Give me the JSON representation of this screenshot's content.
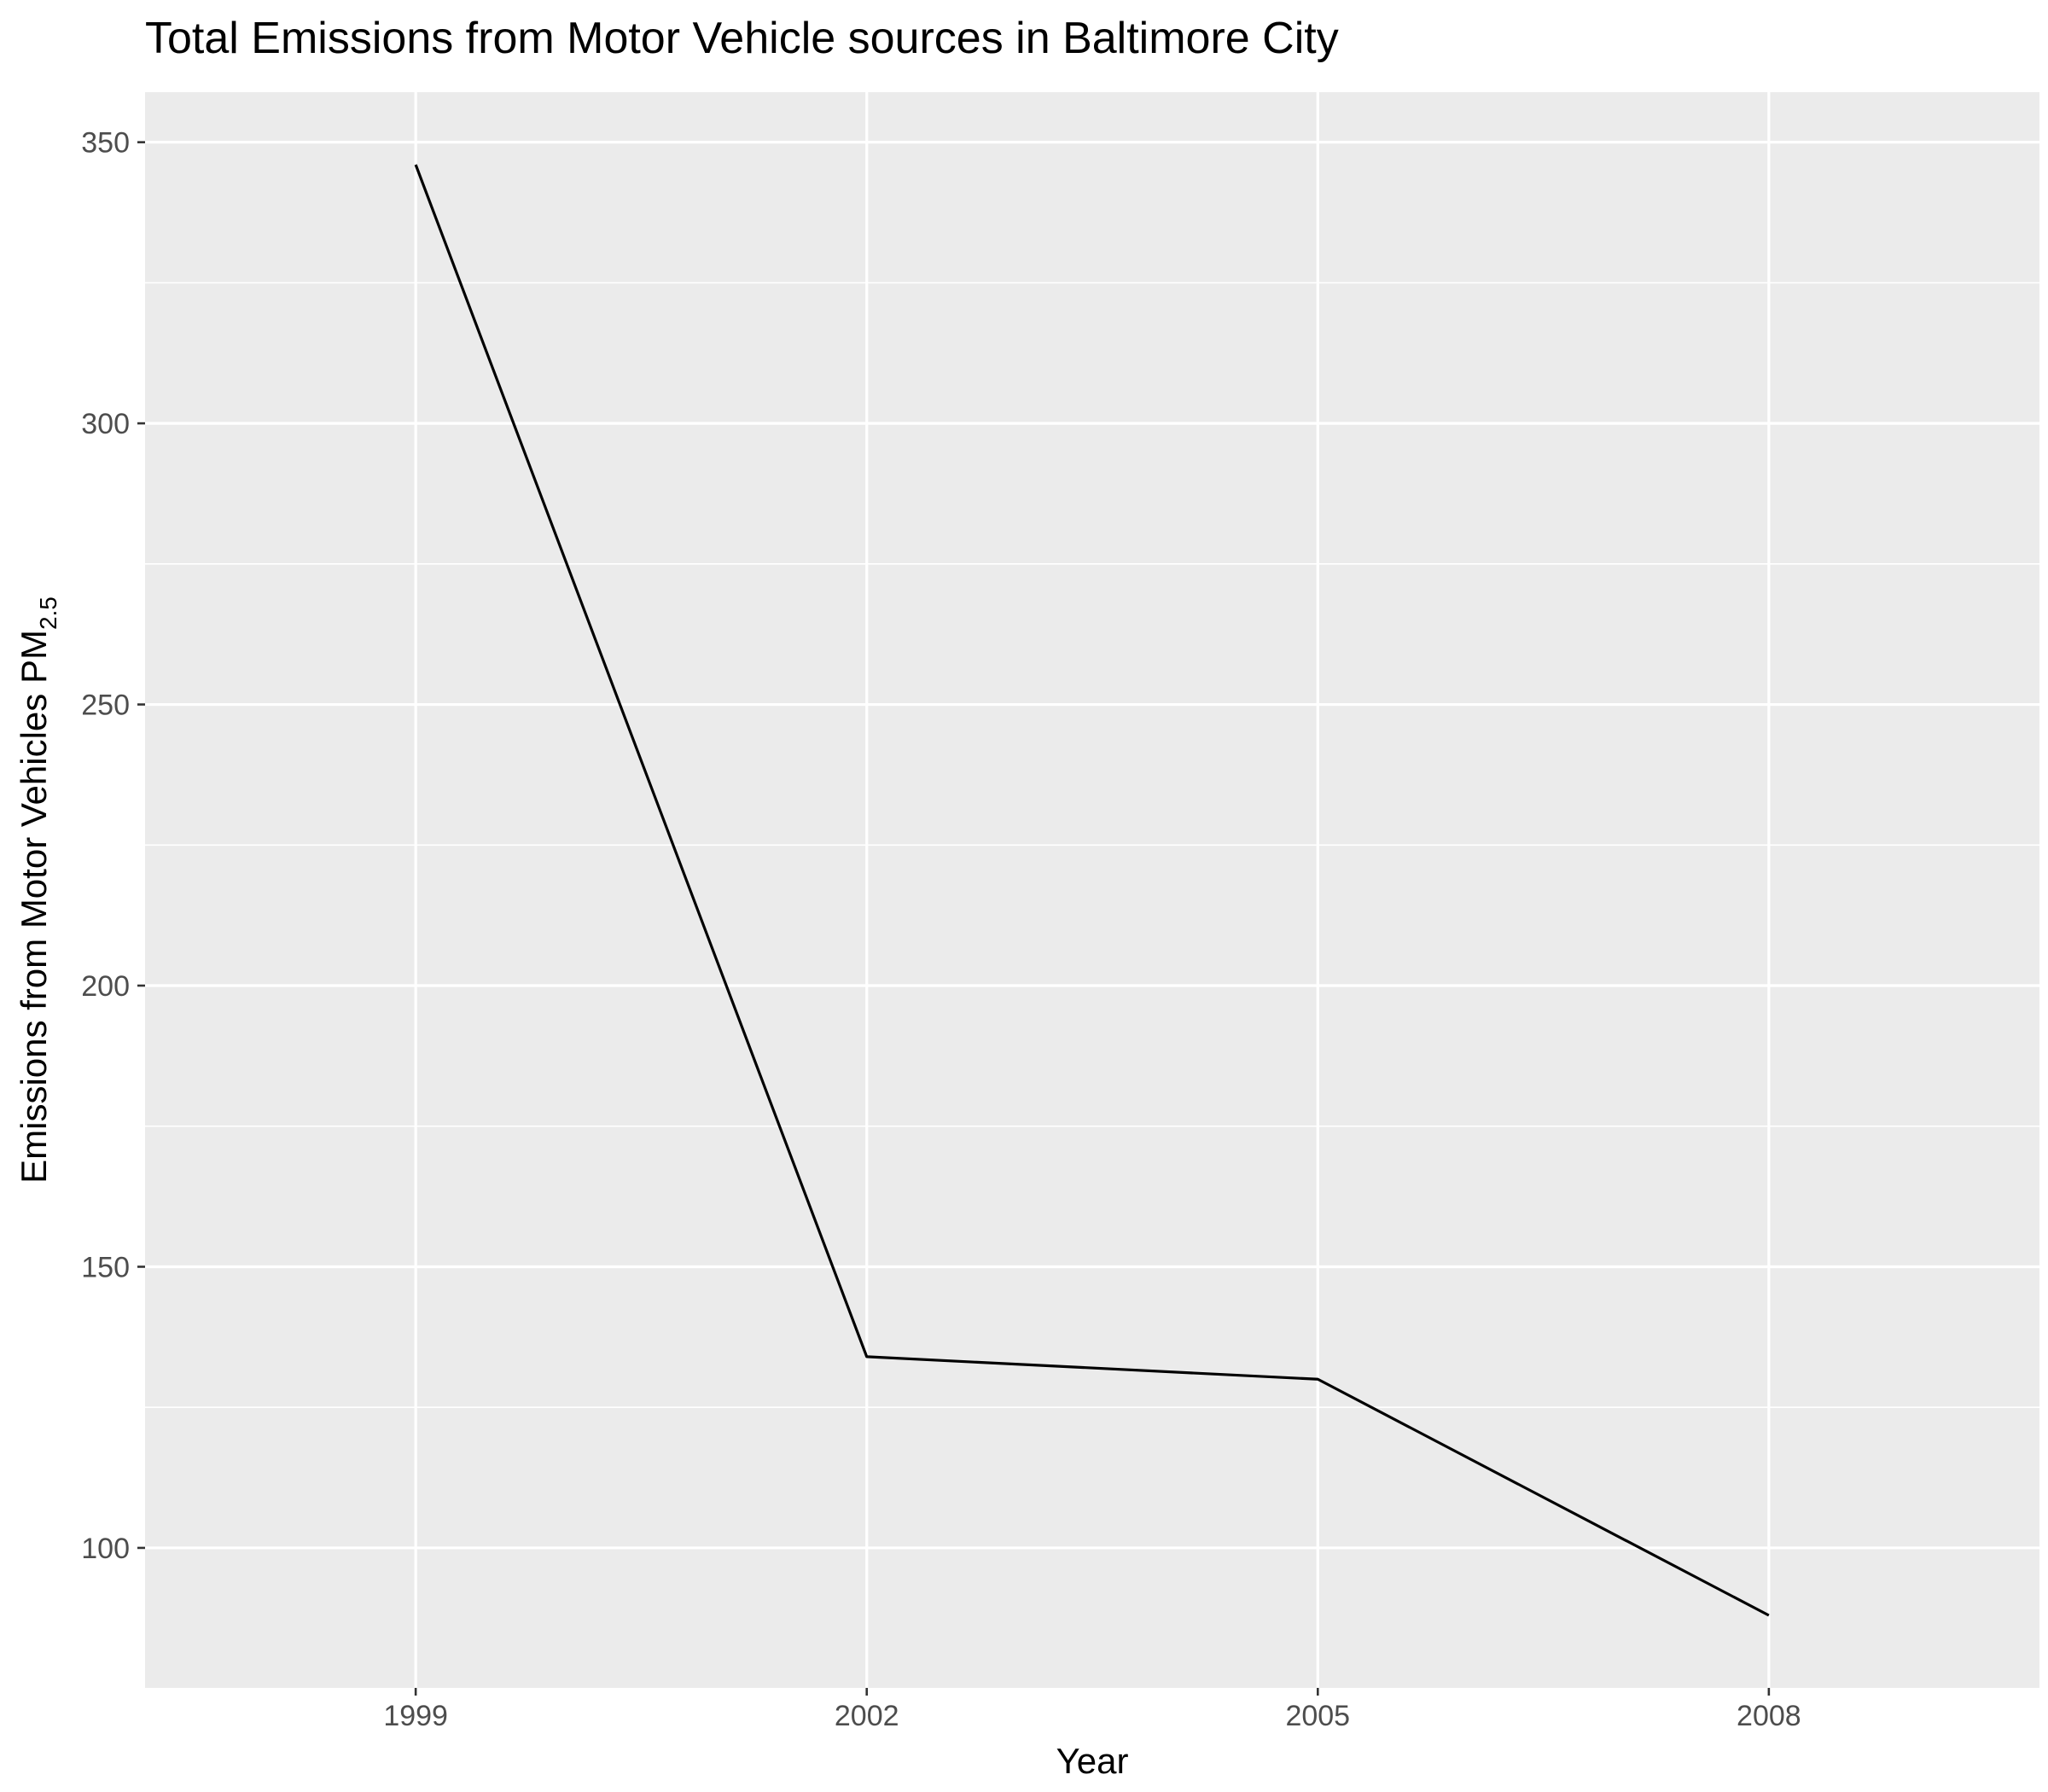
{
  "chart_data": {
    "type": "line",
    "title": "Total Emissions from Motor Vehicle sources in Baltimore City",
    "xlabel": "Year",
    "ylabel": "Emissions from Motor Vehicles PM",
    "ylabel_subscript": "2.5",
    "categories": [
      "1999",
      "2002",
      "2005",
      "2008"
    ],
    "series": [
      {
        "values": [
          346,
          134,
          130,
          88
        ],
        "color": "#000000"
      }
    ],
    "y_ticks": [
      100,
      150,
      200,
      250,
      300,
      350
    ],
    "ylim": [
      75.1,
      358.9
    ],
    "panel_background": "#ebebeb",
    "grid": true,
    "grid_color": "#ffffff",
    "legend": "none"
  }
}
